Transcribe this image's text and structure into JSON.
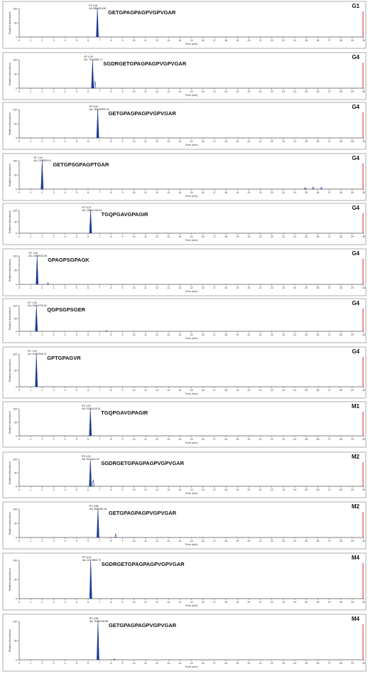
{
  "chart_data": [
    {
      "type": "line",
      "group": "G1",
      "peptide": "GETGPAGPAGPVGPVGAR",
      "rt_label": "RT: 6.81",
      "aa_label": "AA: 8884314.60",
      "peak_rt": 6.81,
      "peak_height": 100,
      "minor_peaks": [],
      "ylabel": "Relative Abundance",
      "xlabel": "Time (min)",
      "xlim": [
        0,
        30
      ],
      "ylim": [
        0,
        100
      ]
    },
    {
      "type": "line",
      "group": "G4",
      "peptide": "SGDRGETGPAGPAGPVGPVGAR",
      "rt_label": "RT: 6.39",
      "aa_label": "AA: 76134561.17",
      "peak_rt": 6.39,
      "peak_height": 100,
      "minor_peaks": [
        {
          "rt": 6.6,
          "h": 25
        }
      ],
      "ylabel": "Relative Abundance",
      "xlabel": "Time (min)",
      "xlim": [
        0,
        30
      ],
      "ylim": [
        0,
        100
      ]
    },
    {
      "type": "line",
      "group": "G4",
      "peptide": "GETGPAGPAGPVGPVGAR",
      "rt_label": "RT: 6.84",
      "aa_label": "AA: 484225902.34",
      "peak_rt": 6.84,
      "peak_height": 100,
      "minor_peaks": [],
      "ylabel": "Relative Abundance",
      "xlabel": "Time (min)",
      "xlim": [
        0,
        30
      ],
      "ylim": [
        0,
        100
      ]
    },
    {
      "type": "line",
      "group": "G4",
      "peptide": "GETGPSGPAGPTGAR",
      "rt_label": "RT: 2.00",
      "aa_label": "AA: 2298999.24",
      "peak_rt": 2.0,
      "peak_height": 100,
      "minor_peaks": [
        {
          "rt": 24.9,
          "h": 6
        },
        {
          "rt": 25.6,
          "h": 8
        },
        {
          "rt": 26.3,
          "h": 7
        }
      ],
      "ylabel": "Relative Abundance",
      "xlabel": "Time (min)",
      "xlim": [
        0,
        30
      ],
      "ylim": [
        0,
        100
      ]
    },
    {
      "type": "line",
      "group": "G4",
      "peptide": "TGQPGAVGPAGIR",
      "rt_label": "RT: 6.22",
      "aa_label": "AA: 258617160.61",
      "peak_rt": 6.22,
      "peak_height": 100,
      "minor_peaks": [],
      "ylabel": "Relative Abundance",
      "xlabel": "Time (min)",
      "xlim": [
        0,
        30
      ],
      "ylim": [
        0,
        100
      ]
    },
    {
      "type": "line",
      "group": "G4",
      "peptide": "GPAGPSGPAGK",
      "rt_label": "RT: 1.56",
      "aa_label": "AA: 21855411.66",
      "peak_rt": 1.56,
      "peak_height": 100,
      "minor_peaks": [
        {
          "rt": 2.5,
          "h": 6
        }
      ],
      "ylabel": "Relative Abundance",
      "xlabel": "Time (min)",
      "xlim": [
        0,
        30
      ],
      "ylim": [
        0,
        100
      ]
    },
    {
      "type": "line",
      "group": "G4",
      "peptide": "QGPSGPSGER",
      "rt_label": "RT: 1.50",
      "aa_label": "AA: 28491776.45",
      "peak_rt": 1.5,
      "peak_height": 100,
      "minor_peaks": [
        {
          "rt": 7.6,
          "h": 3
        }
      ],
      "ylabel": "Relative Abundance",
      "xlabel": "Time (min)",
      "xlim": [
        0,
        30
      ],
      "ylim": [
        0,
        100
      ]
    },
    {
      "type": "line",
      "group": "G4",
      "peptide": "GPTGPAGVR",
      "rt_label": "RT: 1.50",
      "aa_label": "AA: 10087918.76",
      "peak_rt": 1.5,
      "peak_height": 100,
      "minor_peaks": [],
      "ylabel": "Relative Abundance",
      "xlabel": "Time (min)",
      "xlim": [
        0,
        30
      ],
      "ylim": [
        0,
        100
      ]
    },
    {
      "type": "line",
      "group": "M1",
      "peptide": "TGQPGAVGPAGIR",
      "rt_label": "RT: 6.20",
      "aa_label": "AA: 97661128.13",
      "peak_rt": 6.2,
      "peak_height": 100,
      "minor_peaks": [],
      "ylabel": "Relative Abundance",
      "xlabel": "Time (min)",
      "xlim": [
        0,
        30
      ],
      "ylim": [
        0,
        100
      ]
    },
    {
      "type": "line",
      "group": "M2",
      "peptide": "SGDRGETGPAGPAGPVGPVGAR",
      "rt_label": "RT: 6.20",
      "aa_label": "AA: 9471401.00",
      "peak_rt": 6.2,
      "peak_height": 100,
      "minor_peaks": [
        {
          "rt": 6.45,
          "h": 25
        }
      ],
      "ylabel": "Relative Abundance",
      "xlabel": "Time (min)",
      "xlim": [
        0,
        30
      ],
      "ylim": [
        0,
        100
      ]
    },
    {
      "type": "line",
      "group": "M2",
      "peptide": "GETGPAGPAGPVGPVGAR",
      "rt_label": "RT: 6.86",
      "aa_label": "AA: 9963381.16",
      "peak_rt": 6.86,
      "peak_height": 100,
      "minor_peaks": [
        {
          "rt": 8.4,
          "h": 14
        }
      ],
      "ylabel": "Relative Abundance",
      "xlabel": "Time (min)",
      "xlim": [
        0,
        30
      ],
      "ylim": [
        0,
        100
      ]
    },
    {
      "type": "line",
      "group": "M4",
      "peptide": "SGDRGETGPAGPAGPVGPVGAR",
      "rt_label": "RT: 6.23",
      "aa_label": "AA: 22273605.79",
      "peak_rt": 6.23,
      "peak_height": 100,
      "minor_peaks": [],
      "ylabel": "Relative Abundance",
      "xlabel": "Time (min)",
      "xlim": [
        0,
        30
      ],
      "ylim": [
        0,
        100
      ]
    },
    {
      "type": "line",
      "group": "M4",
      "peptide": "GETGPAGPAGPVGPVGAR",
      "rt_label": "RT: 6.86",
      "aa_label": "AA: 10581044.88",
      "peak_rt": 6.86,
      "peak_height": 100,
      "minor_peaks": [
        {
          "rt": 8.3,
          "h": 2
        }
      ],
      "ylabel": "Relative Abundance",
      "xlabel": "Time (min)",
      "xlim": [
        0,
        30
      ],
      "ylim": [
        0,
        100
      ]
    }
  ],
  "x_ticks": [
    "0",
    "1",
    "2",
    "3",
    "4",
    "5",
    "6",
    "7",
    "8",
    "9",
    "10",
    "11",
    "12",
    "13",
    "14",
    "15",
    "16",
    "17",
    "18",
    "19",
    "20",
    "21",
    "22",
    "23",
    "24",
    "25",
    "26",
    "27",
    "28",
    "29",
    "30"
  ],
  "y_ticks": [
    "0",
    "50",
    "100"
  ],
  "colors": {
    "peak": "#1f3a93",
    "marker": "#e02020",
    "axis": "#555555",
    "panel_border": "#9a9a9a"
  }
}
